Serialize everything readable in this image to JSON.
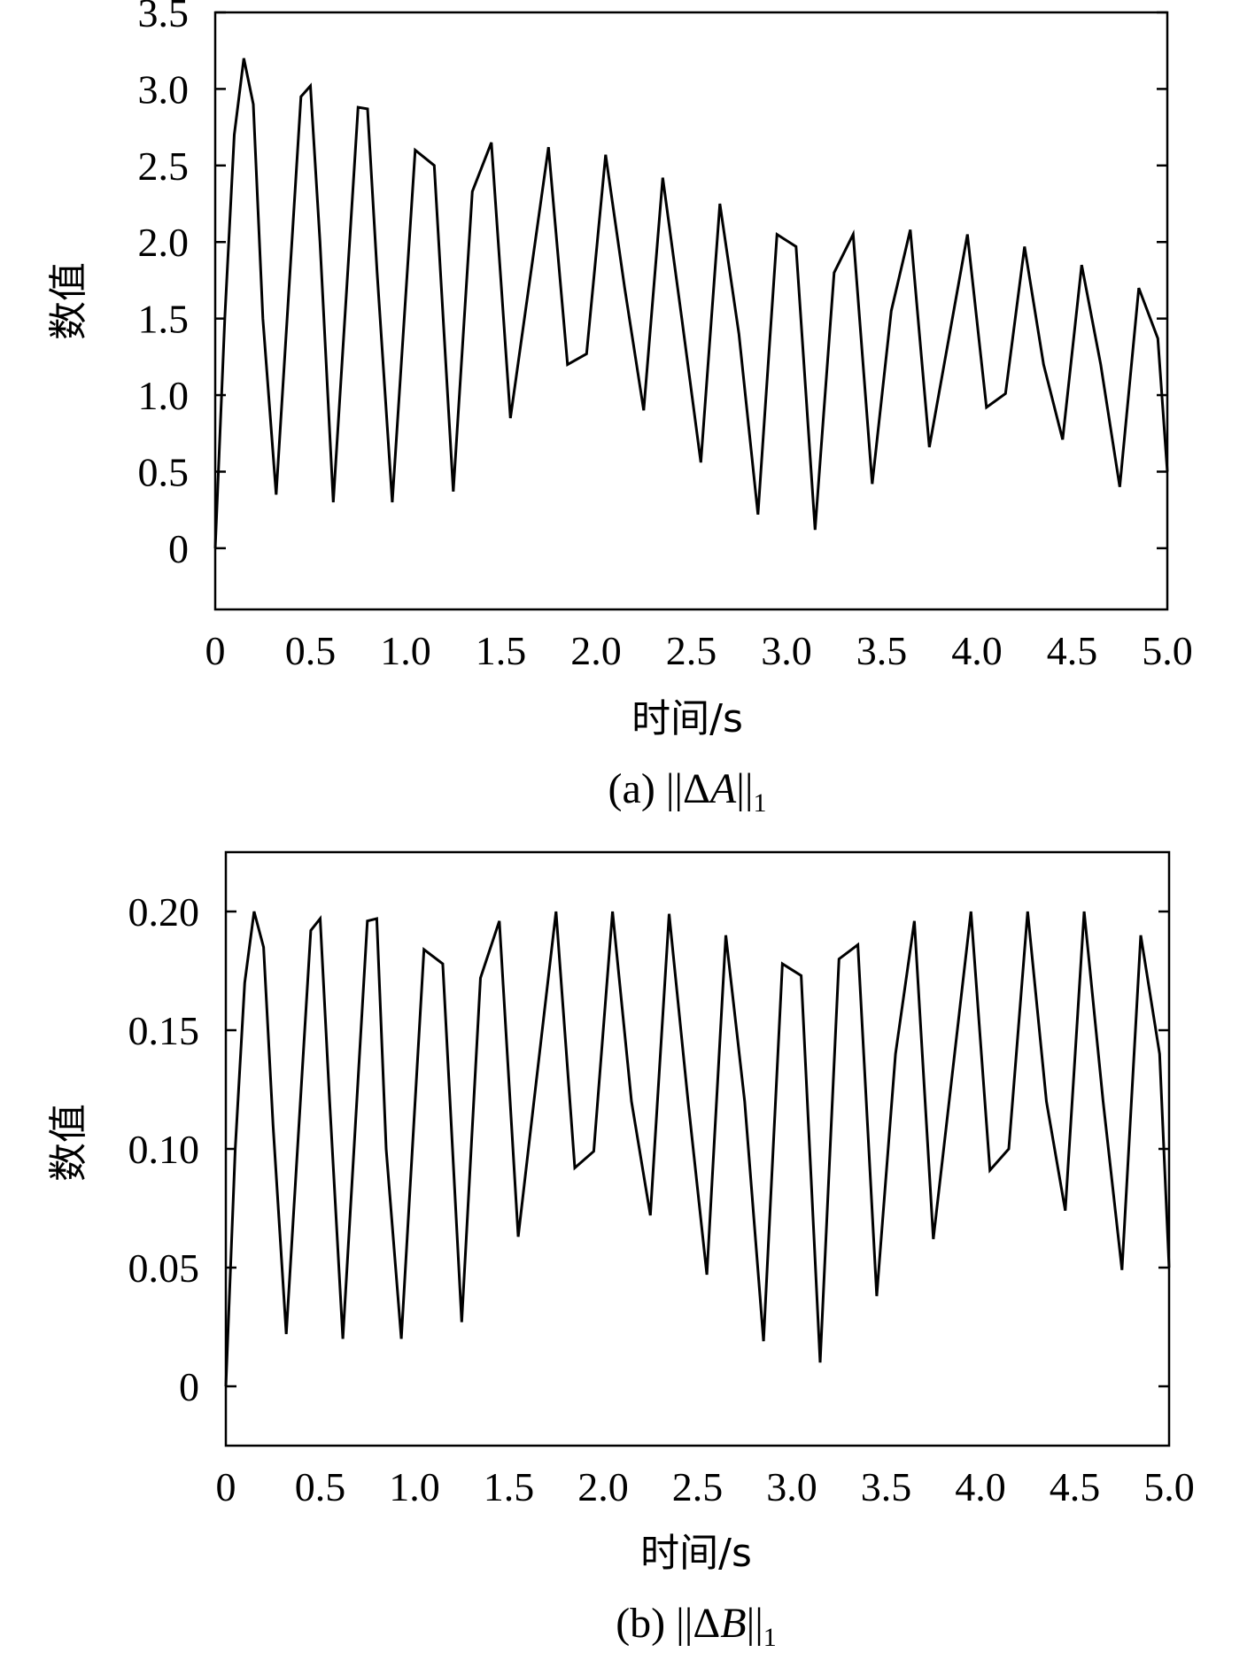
{
  "figure": {
    "captions": [
      {
        "prefix": "(a) ||Δ",
        "symbol": "A",
        "suffix": "||",
        "subscript": "1"
      },
      {
        "prefix": "(b) ||Δ",
        "symbol": "B",
        "suffix": "||",
        "subscript": "1"
      }
    ]
  },
  "chart_data": [
    {
      "type": "line",
      "title": "",
      "xlabel": "时间/s",
      "ylabel": "数值",
      "xlim": [
        0,
        5.0
      ],
      "ylim": [
        -0.4,
        3.5
      ],
      "x_ticks": [
        0,
        0.5,
        1.0,
        1.5,
        2.0,
        2.5,
        3.0,
        3.5,
        4.0,
        4.5,
        5.0
      ],
      "x_tick_labels": [
        "0",
        "0.5",
        "1.0",
        "1.5",
        "2.0",
        "2.5",
        "3.0",
        "3.5",
        "4.0",
        "4.5",
        "5.0"
      ],
      "y_ticks": [
        0,
        0.5,
        1.0,
        1.5,
        2.0,
        2.5,
        3.0,
        3.5
      ],
      "y_tick_labels": [
        "0",
        "0.5",
        "1.0",
        "1.5",
        "2.0",
        "2.5",
        "3.0",
        "3.5"
      ],
      "grid": false,
      "series": [
        {
          "color": "#000000",
          "points": [
            [
              0.0,
              0.0
            ],
            [
              0.05,
              1.5
            ],
            [
              0.1,
              2.7
            ],
            [
              0.15,
              3.2
            ],
            [
              0.2,
              2.9
            ],
            [
              0.25,
              1.5
            ],
            [
              0.32,
              0.35
            ],
            [
              0.45,
              2.95
            ],
            [
              0.5,
              3.02
            ],
            [
              0.55,
              2.0
            ],
            [
              0.62,
              0.3
            ],
            [
              0.75,
              2.88
            ],
            [
              0.8,
              2.87
            ],
            [
              0.85,
              1.8
            ],
            [
              0.93,
              0.3
            ],
            [
              1.05,
              2.6
            ],
            [
              1.15,
              2.5
            ],
            [
              1.25,
              0.37
            ],
            [
              1.35,
              2.33
            ],
            [
              1.45,
              2.65
            ],
            [
              1.55,
              0.85
            ],
            [
              1.75,
              2.62
            ],
            [
              1.85,
              1.2
            ],
            [
              1.95,
              1.27
            ],
            [
              2.05,
              2.57
            ],
            [
              2.15,
              1.7
            ],
            [
              2.25,
              0.9
            ],
            [
              2.35,
              2.42
            ],
            [
              2.45,
              1.5
            ],
            [
              2.55,
              0.56
            ],
            [
              2.65,
              2.25
            ],
            [
              2.75,
              1.4
            ],
            [
              2.85,
              0.22
            ],
            [
              2.95,
              2.05
            ],
            [
              3.05,
              1.97
            ],
            [
              3.15,
              0.12
            ],
            [
              3.25,
              1.8
            ],
            [
              3.35,
              2.05
            ],
            [
              3.45,
              0.42
            ],
            [
              3.55,
              1.55
            ],
            [
              3.65,
              2.08
            ],
            [
              3.75,
              0.66
            ],
            [
              3.95,
              2.05
            ],
            [
              4.05,
              0.92
            ],
            [
              4.15,
              1.01
            ],
            [
              4.25,
              1.97
            ],
            [
              4.35,
              1.2
            ],
            [
              4.45,
              0.71
            ],
            [
              4.55,
              1.85
            ],
            [
              4.65,
              1.2
            ],
            [
              4.75,
              0.4
            ],
            [
              4.85,
              1.7
            ],
            [
              4.95,
              1.37
            ],
            [
              5.0,
              0.5
            ]
          ]
        }
      ]
    },
    {
      "type": "line",
      "title": "",
      "xlabel": "时间/s",
      "ylabel": "数值",
      "xlim": [
        0,
        5.0
      ],
      "ylim": [
        -0.025,
        0.225
      ],
      "x_ticks": [
        0,
        0.5,
        1.0,
        1.5,
        2.0,
        2.5,
        3.0,
        3.5,
        4.0,
        4.5,
        5.0
      ],
      "x_tick_labels": [
        "0",
        "0.5",
        "1.0",
        "1.5",
        "2.0",
        "2.5",
        "3.0",
        "3.5",
        "4.0",
        "4.5",
        "5.0"
      ],
      "y_ticks": [
        0,
        0.05,
        0.1,
        0.15,
        0.2
      ],
      "y_tick_labels": [
        "0",
        "0.05",
        "0.10",
        "0.15",
        "0.20"
      ],
      "grid": false,
      "series": [
        {
          "color": "#000000",
          "points": [
            [
              0.0,
              0.0
            ],
            [
              0.05,
              0.1
            ],
            [
              0.1,
              0.17
            ],
            [
              0.15,
              0.2
            ],
            [
              0.2,
              0.185
            ],
            [
              0.25,
              0.11
            ],
            [
              0.32,
              0.022
            ],
            [
              0.45,
              0.192
            ],
            [
              0.5,
              0.197
            ],
            [
              0.55,
              0.12
            ],
            [
              0.62,
              0.02
            ],
            [
              0.75,
              0.196
            ],
            [
              0.8,
              0.197
            ],
            [
              0.85,
              0.1
            ],
            [
              0.93,
              0.02
            ],
            [
              1.05,
              0.184
            ],
            [
              1.15,
              0.178
            ],
            [
              1.25,
              0.027
            ],
            [
              1.35,
              0.172
            ],
            [
              1.45,
              0.196
            ],
            [
              1.55,
              0.063
            ],
            [
              1.75,
              0.2
            ],
            [
              1.85,
              0.092
            ],
            [
              1.95,
              0.099
            ],
            [
              2.05,
              0.2
            ],
            [
              2.15,
              0.12
            ],
            [
              2.25,
              0.072
            ],
            [
              2.35,
              0.199
            ],
            [
              2.45,
              0.12
            ],
            [
              2.55,
              0.047
            ],
            [
              2.65,
              0.19
            ],
            [
              2.75,
              0.12
            ],
            [
              2.85,
              0.019
            ],
            [
              2.95,
              0.178
            ],
            [
              3.05,
              0.173
            ],
            [
              3.15,
              0.01
            ],
            [
              3.25,
              0.18
            ],
            [
              3.35,
              0.186
            ],
            [
              3.45,
              0.038
            ],
            [
              3.55,
              0.14
            ],
            [
              3.65,
              0.196
            ],
            [
              3.75,
              0.062
            ],
            [
              3.95,
              0.2
            ],
            [
              4.05,
              0.091
            ],
            [
              4.15,
              0.1
            ],
            [
              4.25,
              0.2
            ],
            [
              4.35,
              0.12
            ],
            [
              4.45,
              0.074
            ],
            [
              4.55,
              0.2
            ],
            [
              4.65,
              0.12
            ],
            [
              4.75,
              0.049
            ],
            [
              4.85,
              0.19
            ],
            [
              4.95,
              0.14
            ],
            [
              5.0,
              0.05
            ]
          ]
        }
      ]
    }
  ]
}
